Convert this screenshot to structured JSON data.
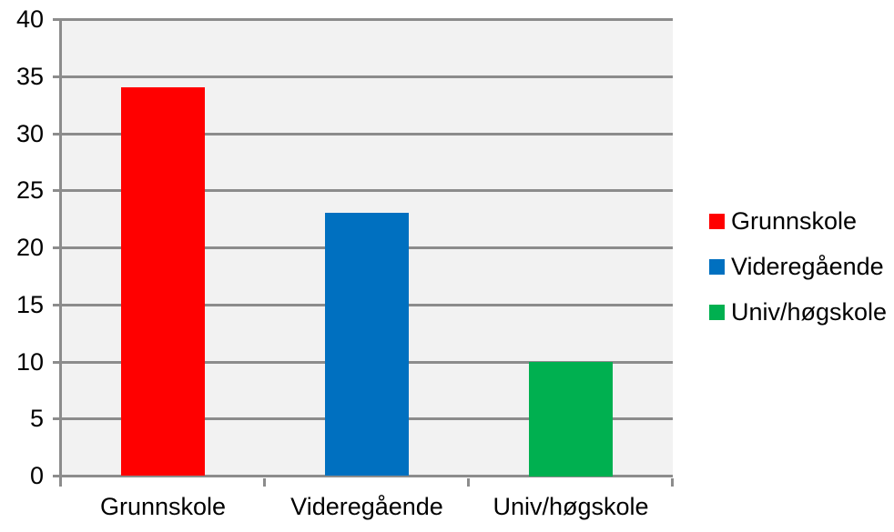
{
  "chart_data": {
    "type": "bar",
    "title": "",
    "xlabel": "",
    "ylabel": "",
    "categories": [
      "Grunnskole",
      "Videregående",
      "Univ/høgskole"
    ],
    "values": [
      34,
      23,
      10
    ],
    "bar_colors": [
      "#FF0000",
      "#0070C0",
      "#00B050"
    ],
    "ylim": [
      0,
      40
    ],
    "ytick_step": 5,
    "ytick_labels": [
      "0",
      "5",
      "10",
      "15",
      "20",
      "25",
      "30",
      "35",
      "40"
    ],
    "grid": true,
    "plot_background": "#F2F2F2",
    "grid_color": "#8C8C8C",
    "text_color": "#000000",
    "page_background": "#FFFFFF",
    "legend": {
      "position": "right",
      "items": [
        {
          "label": "Grunnskole",
          "color": "#FF0000"
        },
        {
          "label": "Videregående",
          "color": "#0070C0"
        },
        {
          "label": "Univ/høgskole",
          "color": "#00B050"
        }
      ]
    }
  }
}
